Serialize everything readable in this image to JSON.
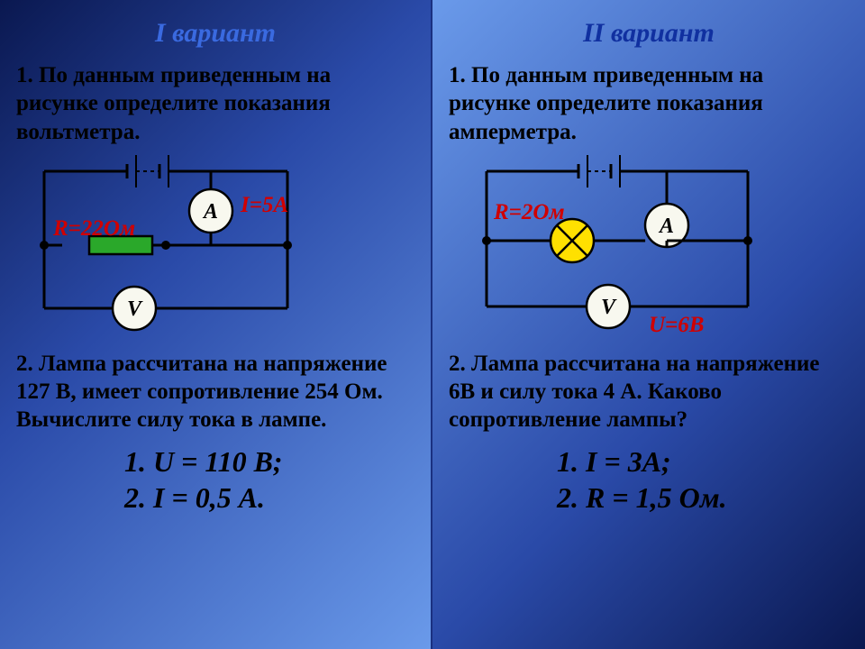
{
  "colors": {
    "heading_left": "#3a6ae0",
    "heading_right": "#1030a0",
    "text": "#000000",
    "accent": "#d00000",
    "wire": "#000000",
    "node": "#000000",
    "meter_fill": "#f8f8ef",
    "meter_stroke": "#000000",
    "resistor_fill": "#2aa82a",
    "resistor_stroke": "#000000",
    "lamp_fill": "#ffe000",
    "lamp_stroke": "#000000"
  },
  "left": {
    "heading": "I вариант",
    "task1": "1. По данным приведенным на рисунке определите показания вольтметра.",
    "task2": "2. Лампа рассчитана на напряжение 127 В,  имеет сопротивление 254 Ом. Вычислите силу тока в лампе.",
    "annot_R": "R=22Ом",
    "annot_I": "I=5A",
    "meter_A": "A",
    "meter_V": "V",
    "answer1": "1.  U = 110 В;",
    "answer2": "2.  I = 0,5 А."
  },
  "right": {
    "heading": "II вариант",
    "task1": "1. По данным приведенным на рисунке определите показания амперметра.",
    "task2": "2. Лампа рассчитана на напряжение 6В и силу тока 4 А. Каково сопротивление лампы?",
    "annot_R": "R=2Ом",
    "annot_U": "U=6В",
    "meter_A": "A",
    "meter_V": "V",
    "answer1": "1.  I = 3A;",
    "answer2": "2.  R = 1,5 Ом."
  },
  "geom": {
    "wire_width": 3,
    "node_radius": 5,
    "meter_radius": 24,
    "lamp_radius": 24,
    "resistor_w": 70,
    "resistor_h": 20
  }
}
